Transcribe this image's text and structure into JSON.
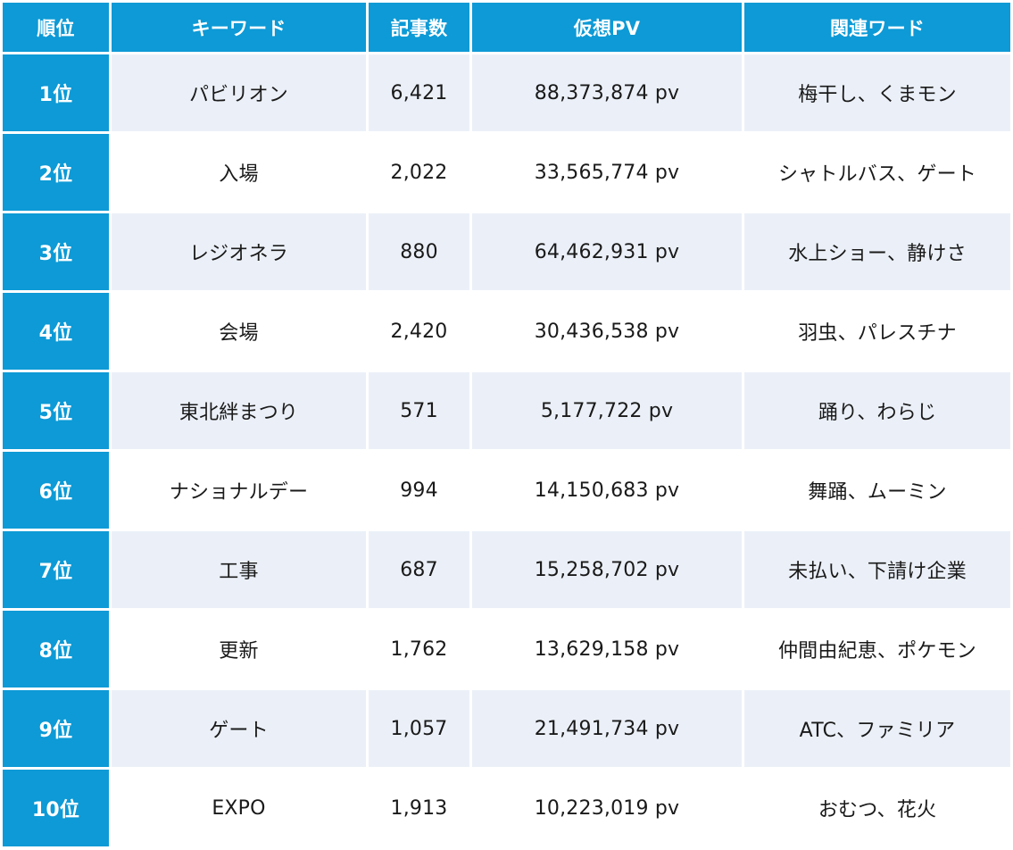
{
  "table": {
    "headers": [
      "順位",
      "キーワード",
      "記事数",
      "仮想PV",
      "関連ワード"
    ],
    "rows": [
      [
        "1位",
        "パビリオン",
        "6,421",
        "88,373,874 pv",
        "梅干し、くまモン"
      ],
      [
        "2位",
        "入場",
        "2,022",
        "33,565,774 pv",
        "シャトルバス、ゲート"
      ],
      [
        "3位",
        "レジオネラ",
        "880",
        "64,462,931 pv",
        "水上ショー、静けさ"
      ],
      [
        "4位",
        "会場",
        "2,420",
        "30,436,538 pv",
        "羽虫、パレスチナ"
      ],
      [
        "5位",
        "東北絆まつり",
        "571",
        "5,177,722 pv",
        "踊り、わらじ"
      ],
      [
        "6位",
        "ナショナルデー",
        "994",
        "14,150,683 pv",
        "舞踊、ムーミン"
      ],
      [
        "7位",
        "工事",
        "687",
        "15,258,702 pv",
        "未払い、下請け企業"
      ],
      [
        "8位",
        "更新",
        "1,762",
        "13,629,158 pv",
        "仲間由紀恵、ポケモン"
      ],
      [
        "9位",
        "ゲート",
        "1,057",
        "21,491,734 pv",
        "ATC、ファミリア"
      ],
      [
        "10位",
        "EXPO",
        "1,913",
        "10,223,019 pv",
        "おむつ、花火"
      ]
    ]
  },
  "colors": {
    "header_bg": "#0d9ad6",
    "header_text": "#ffffff",
    "row_alt_bg": "#ebf0f8",
    "row_bg": "#ffffff"
  }
}
